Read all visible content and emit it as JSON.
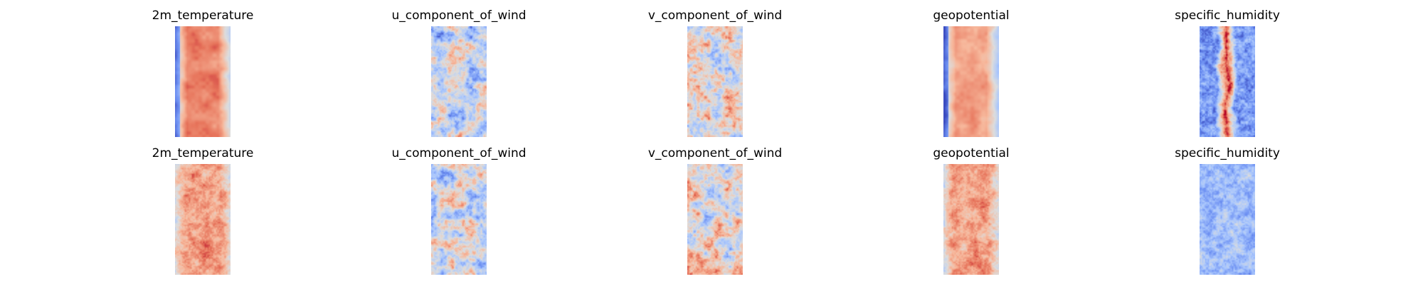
{
  "chart_data": {
    "type": "heatmap",
    "colormap": "coolwarm",
    "colormap_stops": [
      "#3b4cc0",
      "#6f92f3",
      "#aac7fd",
      "#dddddd",
      "#f7b89c",
      "#e7745b",
      "#b40426"
    ],
    "layout": "2 rows x 5 columns of heatmap panels, no axes",
    "rows": [
      {
        "panels": [
          {
            "title": "2m_temperature",
            "pattern": "warm-core",
            "level": 0.8
          },
          {
            "title": "u_component_of_wind",
            "pattern": "noisy",
            "level": 0.42
          },
          {
            "title": "v_component_of_wind",
            "pattern": "noisy",
            "level": 0.52
          },
          {
            "title": "geopotential",
            "pattern": "warm-core",
            "level": 0.72
          },
          {
            "title": "specific_humidity",
            "pattern": "narrow-core",
            "level": 0.2
          }
        ]
      },
      {
        "panels": [
          {
            "title": "2m_temperature",
            "pattern": "warm-core-noisy",
            "level": 0.74
          },
          {
            "title": "u_component_of_wind",
            "pattern": "noisy",
            "level": 0.46
          },
          {
            "title": "v_component_of_wind",
            "pattern": "noisy",
            "level": 0.56
          },
          {
            "title": "geopotential",
            "pattern": "warm-core-noisy",
            "level": 0.72
          },
          {
            "title": "specific_humidity",
            "pattern": "cool-noisy",
            "level": 0.3
          }
        ]
      }
    ]
  }
}
